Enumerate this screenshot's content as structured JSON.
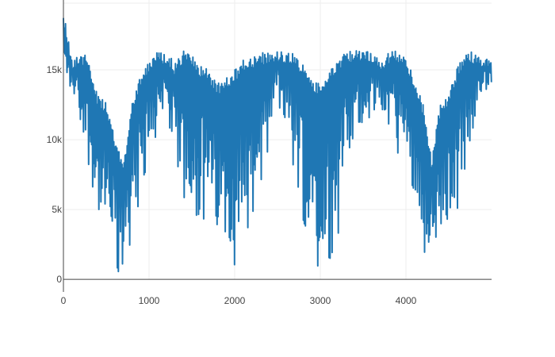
{
  "chart_data": {
    "type": "line",
    "title": "",
    "xlabel": "",
    "ylabel": "",
    "xlim": [
      0,
      5000
    ],
    "ylim": [
      -900,
      20000
    ],
    "grid": true,
    "legend": "none",
    "line_color": "#1f77b4",
    "x_ticks": [
      {
        "value": 0,
        "label": "0"
      },
      {
        "value": 1000,
        "label": "1000"
      },
      {
        "value": 2000,
        "label": "2000"
      },
      {
        "value": 3000,
        "label": "3000"
      },
      {
        "value": 4000,
        "label": "4000"
      }
    ],
    "y_ticks": [
      {
        "value": 0,
        "label": "0"
      },
      {
        "value": 5000,
        "label": "5k"
      },
      {
        "value": 10000,
        "label": "10k"
      },
      {
        "value": 15000,
        "label": "15k"
      }
    ],
    "series": [
      {
        "description_points": "envelope samples (x, upper, lower) of a dense oscillating signal",
        "x": [
          0,
          100,
          200,
          300,
          400,
          500,
          600,
          700,
          800,
          900,
          1000,
          1100,
          1200,
          1300,
          1400,
          1500,
          1600,
          1700,
          1800,
          1900,
          2000,
          2100,
          2200,
          2300,
          2400,
          2500,
          2600,
          2700,
          2800,
          2900,
          3000,
          3100,
          3200,
          3300,
          3400,
          3500,
          3600,
          3700,
          3800,
          3900,
          4000,
          4100,
          4200,
          4300,
          4400,
          4500,
          4600,
          4700,
          4800,
          4900,
          5000
        ],
        "upper": [
          19300,
          15800,
          16300,
          15800,
          13200,
          12600,
          10200,
          8200,
          12800,
          14800,
          15700,
          16300,
          16300,
          15500,
          16400,
          16000,
          15300,
          15000,
          14000,
          14400,
          15000,
          15700,
          16000,
          16200,
          16300,
          16400,
          16300,
          16200,
          15300,
          14300,
          14000,
          14800,
          15600,
          16300,
          16400,
          16300,
          16400,
          15700,
          16300,
          16400,
          15800,
          14500,
          12500,
          8700,
          12500,
          13300,
          15200,
          16200,
          16300,
          16000,
          15500
        ],
        "lower": [
          13500,
          13000,
          11000,
          6500,
          3200,
          1800,
          400,
          600,
          3000,
          5800,
          8500,
          10500,
          12000,
          9000,
          5500,
          4000,
          4800,
          3000,
          1500,
          500,
          700,
          2500,
          4000,
          6500,
          9000,
          12500,
          11000,
          7500,
          4000,
          1500,
          500,
          1200,
          3000,
          6000,
          8800,
          10500,
          12000,
          11500,
          11000,
          8800,
          7500,
          4500,
          2200,
          300,
          800,
          2500,
          5000,
          8000,
          11000,
          13500,
          13700
        ]
      }
    ]
  }
}
